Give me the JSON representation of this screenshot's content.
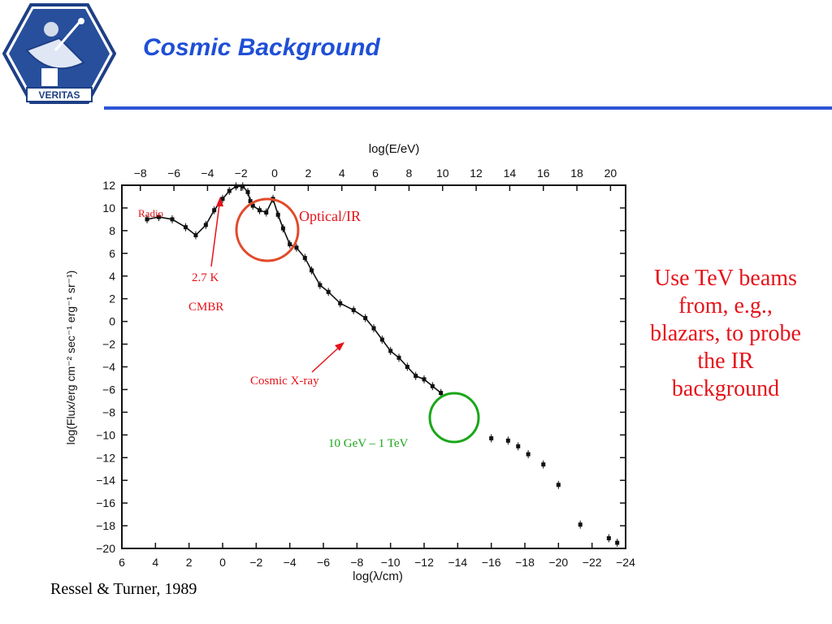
{
  "slide": {
    "title": "Cosmic Background",
    "logo_text": "VERITAS",
    "side_note": "Use TeV beams from, e.g., blazars, to probe the IR background",
    "citation": "Ressel & Turner, 1989"
  },
  "colors": {
    "title": "#1f4fd6",
    "rule": "#2c55d6",
    "red_annotation": "#e5131a",
    "optical_circle": "#e24a2a",
    "gamma_circle": "#1aa61a",
    "gamma_text": "#1aa61a"
  },
  "chart_data": {
    "type": "scatter",
    "xlabel": "log(λ/cm)",
    "top_xlabel": "log(E/eV)",
    "ylabel": "log(Flux/erg cm⁻² sec⁻¹ erg⁻¹ sr⁻¹)",
    "xlim": [
      6,
      -24
    ],
    "ylim": [
      -20,
      12
    ],
    "bottom_ticks": [
      6,
      4,
      2,
      0,
      -2,
      -4,
      -6,
      -8,
      -10,
      -12,
      -14,
      -16,
      -18,
      -20,
      -22,
      -24
    ],
    "bottom_tick_labels": [
      "6",
      "4",
      "2",
      "0",
      "−2",
      "−4",
      "−6",
      "−8",
      "−10",
      "−12",
      "−14",
      "−16",
      "−18",
      "−20",
      "−22",
      "−24"
    ],
    "top_ticks": [
      -8,
      -6,
      -4,
      -2,
      0,
      2,
      4,
      6,
      8,
      10,
      12,
      14,
      16,
      18,
      20
    ],
    "top_tick_labels": [
      "−8",
      "−6",
      "−4",
      "−2",
      "0",
      "2",
      "4",
      "6",
      "8",
      "10",
      "12",
      "14",
      "16",
      "18",
      "20"
    ],
    "y_ticks": [
      12,
      10,
      8,
      6,
      4,
      2,
      0,
      -2,
      -4,
      -6,
      -8,
      -10,
      -12,
      -14,
      -16,
      -18,
      -20
    ],
    "y_tick_labels": [
      "12",
      "10",
      "8",
      "6",
      "4",
      "2",
      "0",
      "−2",
      "−4",
      "−6",
      "−8",
      "−10",
      "−12",
      "−14",
      "−16",
      "−18",
      "−20"
    ],
    "series": [
      {
        "name": "",
        "x": [
          4.5,
          3.8,
          3.0,
          2.2,
          1.6,
          1.0,
          0.5,
          0.0,
          -0.4,
          -0.8,
          -1.2,
          -1.5,
          -1.65
        ],
        "y": [
          9.0,
          9.2,
          9.0,
          8.3,
          7.6,
          8.5,
          9.8,
          10.8,
          11.5,
          11.9,
          11.9,
          11.4,
          10.6
        ]
      },
      {
        "name": "",
        "x": [
          -1.8,
          -2.2,
          -2.6,
          -3.0,
          -3.3,
          -3.6,
          -4.0,
          -4.4,
          -4.9,
          -5.3,
          -5.8,
          -6.3,
          -7.0,
          -7.8,
          -8.5,
          -9.0,
          -9.5,
          -10.0,
          -10.5,
          -11.0,
          -11.5,
          -12.0,
          -12.5,
          -13.0
        ],
        "y": [
          10.2,
          9.8,
          9.6,
          10.8,
          9.4,
          8.2,
          6.8,
          6.5,
          5.6,
          4.5,
          3.2,
          2.6,
          1.6,
          1.0,
          0.3,
          -0.6,
          -1.6,
          -2.6,
          -3.2,
          -4.0,
          -4.8,
          -5.1,
          -5.7,
          -6.3
        ]
      },
      {
        "name": "",
        "x": [
          -16.0,
          -17.0,
          -17.6,
          -18.2,
          -19.1,
          -20.0,
          -21.3,
          -23.0,
          -23.5
        ],
        "y": [
          -10.3,
          -10.5,
          -11.0,
          -11.7,
          -12.6,
          -14.4,
          -17.9,
          -19.1,
          -19.5
        ]
      }
    ],
    "annotations": {
      "radio": "Radio",
      "cmbr_temp": "2.7 K",
      "cmbr": "CMBR",
      "optical_ir": "Optical/IR",
      "cosmic_xray": "Cosmic X-ray",
      "gamma_range": "10 GeV – 1 TeV"
    }
  }
}
